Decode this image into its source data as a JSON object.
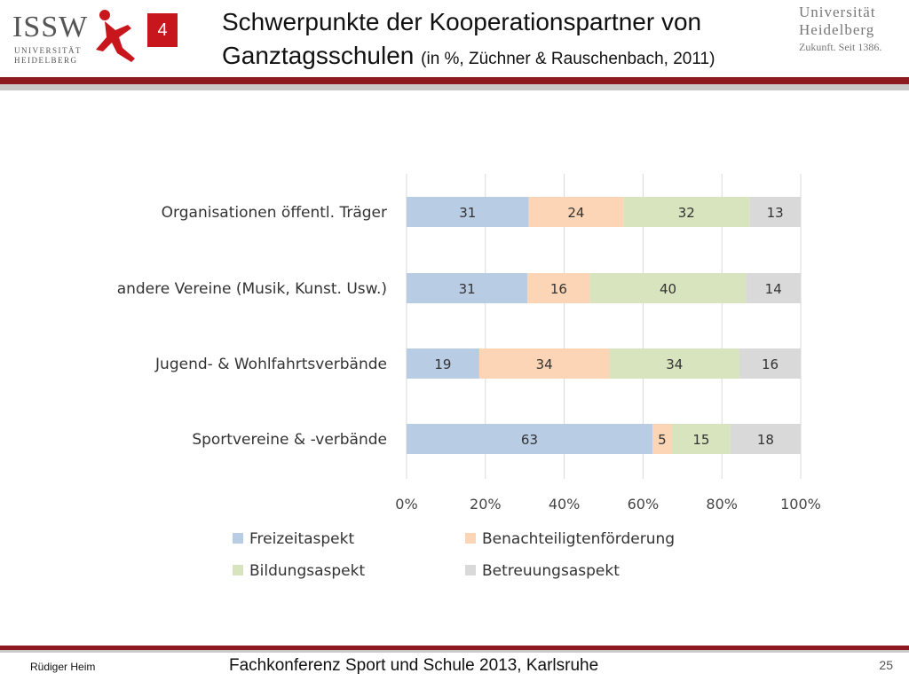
{
  "header": {
    "logo_left_text": "ISSW",
    "logo_left_sub": "UNIVERSITÄT HEIDELBERG",
    "slide_number": "4",
    "title_line1": "Schwerpunkte der Kooperationspartner von",
    "title_line2": "Ganztagsschulen",
    "title_sub": "(in %, Züchner & Rauschenbach, 2011)",
    "logo_right_line1": "Universität",
    "logo_right_line2": "Heidelberg",
    "logo_right_line3": "Zukunft. Seit 1386."
  },
  "footer": {
    "author": "Rüdiger Heim",
    "event": "Fachkonferenz Sport und Schule 2013, Karlsruhe",
    "page": "25"
  },
  "colors": {
    "band": "#8e1a21",
    "accent": "#c8161d",
    "series": [
      "#b8cce4",
      "#fbd5b5",
      "#d7e4bd",
      "#d9d9d9"
    ]
  },
  "chart_data": {
    "type": "bar",
    "orientation": "horizontal",
    "stacked": true,
    "normalized": true,
    "categories": [
      "Organisationen öffentl. Träger",
      "andere Vereine (Musik, Kunst. Usw.)",
      "Jugend- & Wohlfahrtsverbände",
      "Sportvereine & -verbände"
    ],
    "series": [
      {
        "name": "Freizeitaspekt",
        "values": [
          31,
          31,
          19,
          63
        ]
      },
      {
        "name": "Benachteiligtenförderung",
        "values": [
          24,
          16,
          34,
          5
        ]
      },
      {
        "name": "Bildungsaspekt",
        "values": [
          32,
          40,
          34,
          15
        ]
      },
      {
        "name": "Betreuungsaspekt",
        "values": [
          13,
          14,
          16,
          18
        ]
      }
    ],
    "xticks": [
      "0%",
      "20%",
      "40%",
      "60%",
      "80%",
      "100%"
    ],
    "xlim": [
      0,
      100
    ],
    "grid": true,
    "legend": "bottom"
  }
}
